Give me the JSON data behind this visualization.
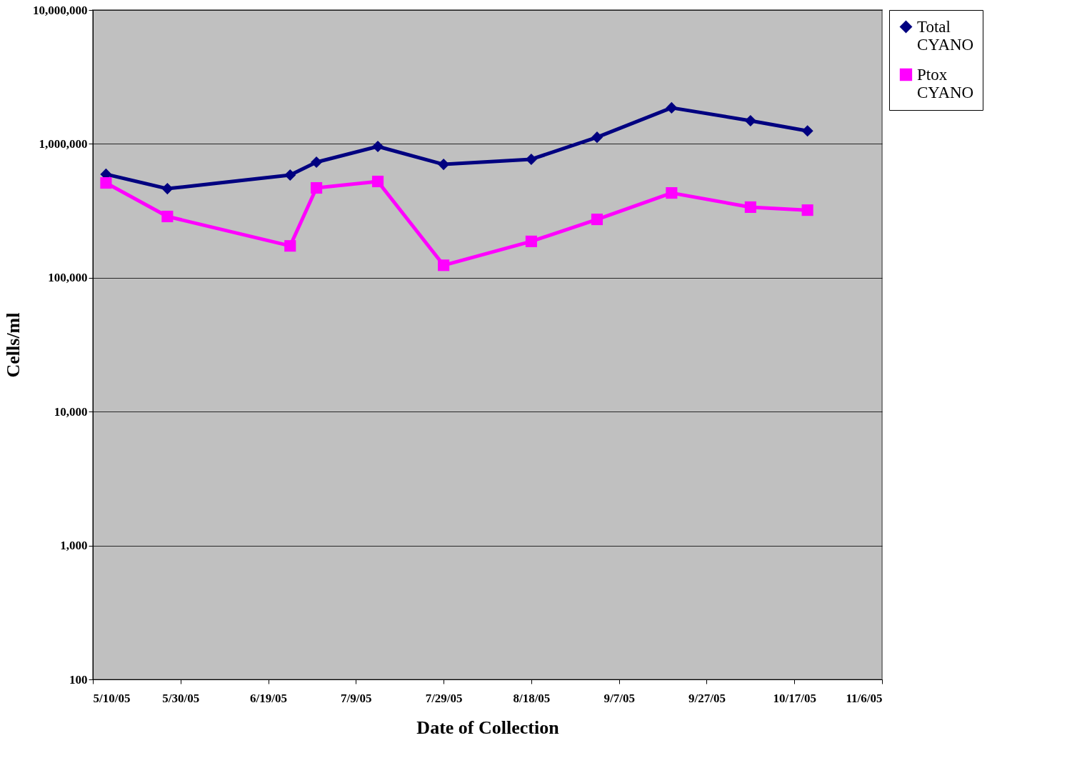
{
  "chart_data": {
    "type": "line",
    "xlabel": "Date of Collection",
    "ylabel": "Cells/ml",
    "xlim": [
      "2005-05-10",
      "2005-11-06"
    ],
    "xticks": [
      {
        "value": "2005-05-10",
        "label": "5/10/05"
      },
      {
        "value": "2005-05-30",
        "label": "5/30/05"
      },
      {
        "value": "2005-06-19",
        "label": "6/19/05"
      },
      {
        "value": "2005-07-09",
        "label": "7/9/05"
      },
      {
        "value": "2005-07-29",
        "label": "7/29/05"
      },
      {
        "value": "2005-08-18",
        "label": "8/18/05"
      },
      {
        "value": "2005-09-07",
        "label": "9/7/05"
      },
      {
        "value": "2005-09-27",
        "label": "9/27/05"
      },
      {
        "value": "2005-10-17",
        "label": "10/17/05"
      },
      {
        "value": "2005-11-06",
        "label": "11/6/05"
      }
    ],
    "ylim": [
      100,
      10000000
    ],
    "yticks": [
      {
        "value": 100,
        "label": "100"
      },
      {
        "value": 1000,
        "label": "1,000"
      },
      {
        "value": 10000,
        "label": "10,000"
      },
      {
        "value": 100000,
        "label": "100,000"
      },
      {
        "value": 1000000,
        "label": "1,000,000"
      },
      {
        "value": 10000000,
        "label": "10,000,000"
      }
    ],
    "log": "y",
    "grid": "y",
    "legend": "right",
    "line_style": "solid",
    "x": [
      "2005-05-13",
      "2005-05-27",
      "2005-06-24",
      "2005-06-30",
      "2005-07-14",
      "2005-07-29",
      "2005-08-18",
      "2005-09-02",
      "2005-09-19",
      "2005-10-07",
      "2005-10-20"
    ],
    "series": [
      {
        "name": "Total CYANO",
        "color": "#000080",
        "marker": "diamond",
        "values": [
          593000,
          463000,
          585000,
          730000,
          957000,
          703000,
          767000,
          1120000,
          1860000,
          1490000,
          1250000
        ]
      },
      {
        "name": "Ptox CYANO",
        "color": "#ff00ff",
        "marker": "square",
        "values": [
          511000,
          287000,
          173000,
          469000,
          524000,
          124000,
          187000,
          273000,
          430000,
          337000,
          320000
        ]
      }
    ]
  }
}
